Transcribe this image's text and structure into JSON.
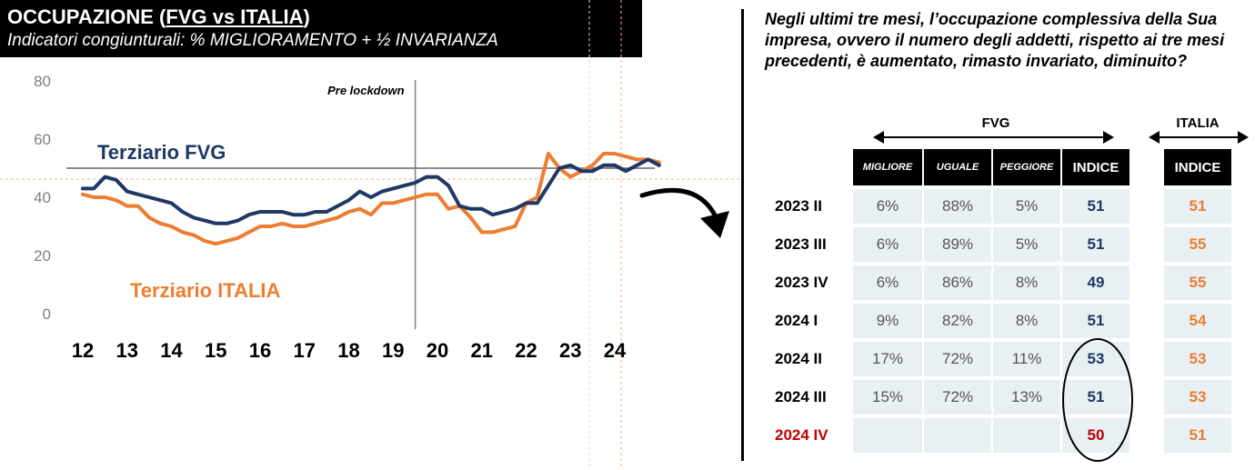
{
  "header": {
    "title_part1": "OCCUPAZIONE (",
    "title_part2": "FVG vs ITALIA",
    "title_part3": ")",
    "subtitle": "Indicatori congiunturali: % MIGLIORAMENTO + ½ INVARIANZA"
  },
  "chart_data": {
    "type": "line",
    "ylim": [
      0,
      80
    ],
    "yticks": [
      0,
      20,
      40,
      60,
      80
    ],
    "x_tick_labels": [
      "12",
      "13",
      "14",
      "15",
      "16",
      "17",
      "18",
      "19",
      "20",
      "21",
      "22",
      "23",
      "24"
    ],
    "x_start": 2012,
    "reference_line_y": 50,
    "annotation": "Pre lockdown",
    "annotation_x": 2019.5,
    "series": [
      {
        "name": "Terziario FVG",
        "color": "#1f3864",
        "points": [
          [
            2012,
            43
          ],
          [
            2012.25,
            43
          ],
          [
            2012.5,
            47
          ],
          [
            2012.75,
            46
          ],
          [
            2013,
            42
          ],
          [
            2013.25,
            41
          ],
          [
            2013.5,
            40
          ],
          [
            2013.75,
            39
          ],
          [
            2014,
            38
          ],
          [
            2014.25,
            35
          ],
          [
            2014.5,
            33
          ],
          [
            2014.75,
            32
          ],
          [
            2015,
            31
          ],
          [
            2015.25,
            31
          ],
          [
            2015.5,
            32
          ],
          [
            2015.75,
            34
          ],
          [
            2016,
            35
          ],
          [
            2016.25,
            35
          ],
          [
            2016.5,
            35
          ],
          [
            2016.75,
            34
          ],
          [
            2017,
            34
          ],
          [
            2017.25,
            35
          ],
          [
            2017.5,
            35
          ],
          [
            2017.75,
            37
          ],
          [
            2018,
            39
          ],
          [
            2018.25,
            42
          ],
          [
            2018.5,
            40
          ],
          [
            2018.75,
            42
          ],
          [
            2019,
            43
          ],
          [
            2019.25,
            44
          ],
          [
            2019.5,
            45
          ],
          [
            2019.75,
            47
          ],
          [
            2020,
            47
          ],
          [
            2020.25,
            44
          ],
          [
            2020.5,
            37
          ],
          [
            2020.75,
            36
          ],
          [
            2021,
            36
          ],
          [
            2021.25,
            34
          ],
          [
            2021.5,
            35
          ],
          [
            2021.75,
            36
          ],
          [
            2022,
            38
          ],
          [
            2022.25,
            38
          ],
          [
            2022.5,
            44
          ],
          [
            2022.75,
            50
          ],
          [
            2023,
            51
          ],
          [
            2023.25,
            49
          ],
          [
            2023.5,
            49
          ],
          [
            2023.75,
            51
          ],
          [
            2024,
            51
          ],
          [
            2024.25,
            49
          ],
          [
            2024.5,
            51
          ],
          [
            2024.75,
            53
          ],
          [
            2025,
            51
          ]
        ]
      },
      {
        "name": "Terziario ITALIA",
        "color": "#ed7d31",
        "points": [
          [
            2012,
            41
          ],
          [
            2012.25,
            40
          ],
          [
            2012.5,
            40
          ],
          [
            2012.75,
            39
          ],
          [
            2013,
            37
          ],
          [
            2013.25,
            37
          ],
          [
            2013.5,
            33
          ],
          [
            2013.75,
            31
          ],
          [
            2014,
            30
          ],
          [
            2014.25,
            28
          ],
          [
            2014.5,
            27
          ],
          [
            2014.75,
            25
          ],
          [
            2015,
            24
          ],
          [
            2015.25,
            25
          ],
          [
            2015.5,
            26
          ],
          [
            2015.75,
            28
          ],
          [
            2016,
            30
          ],
          [
            2016.25,
            30
          ],
          [
            2016.5,
            31
          ],
          [
            2016.75,
            30
          ],
          [
            2017,
            30
          ],
          [
            2017.25,
            31
          ],
          [
            2017.5,
            32
          ],
          [
            2017.75,
            33
          ],
          [
            2018,
            35
          ],
          [
            2018.25,
            36
          ],
          [
            2018.5,
            34
          ],
          [
            2018.75,
            38
          ],
          [
            2019,
            38
          ],
          [
            2019.25,
            39
          ],
          [
            2019.5,
            40
          ],
          [
            2019.75,
            41
          ],
          [
            2020,
            41
          ],
          [
            2020.25,
            36
          ],
          [
            2020.5,
            37
          ],
          [
            2020.75,
            33
          ],
          [
            2021,
            28
          ],
          [
            2021.25,
            28
          ],
          [
            2021.5,
            29
          ],
          [
            2021.75,
            30
          ],
          [
            2022,
            38
          ],
          [
            2022.25,
            40
          ],
          [
            2022.5,
            55
          ],
          [
            2022.75,
            50
          ],
          [
            2023,
            47
          ],
          [
            2023.25,
            49
          ],
          [
            2023.5,
            51
          ],
          [
            2023.75,
            55
          ],
          [
            2024,
            55
          ],
          [
            2024.25,
            54
          ],
          [
            2024.5,
            53
          ],
          [
            2024.75,
            53
          ],
          [
            2025,
            52
          ]
        ]
      }
    ]
  },
  "question": "Negli ultimi tre mesi, l’occupazione complessiva della Sua impresa, ovvero il numero degli addetti, rispetto ai tre mesi precedenti, è aumentato, rimasto invariato, diminuito?",
  "table": {
    "group_fvg": "FVG",
    "group_italia": "ITALIA",
    "headers": [
      "MIGLIORE",
      "UGUALE",
      "PEGGIORE",
      "INDICE"
    ],
    "italia_header": "INDICE",
    "rows": [
      {
        "period": "2023 II",
        "migliore": "6%",
        "uguale": "88%",
        "peggiore": "5%",
        "indice": "51",
        "italia": "51"
      },
      {
        "period": "2023 III",
        "migliore": "6%",
        "uguale": "89%",
        "peggiore": "5%",
        "indice": "51",
        "italia": "55"
      },
      {
        "period": "2023 IV",
        "migliore": "6%",
        "uguale": "86%",
        "peggiore": "8%",
        "indice": "49",
        "italia": "55"
      },
      {
        "period": "2024 I",
        "migliore": "9%",
        "uguale": "82%",
        "peggiore": "8%",
        "indice": "51",
        "italia": "54"
      },
      {
        "period": "2024 II",
        "migliore": "17%",
        "uguale": "72%",
        "peggiore": "11%",
        "indice": "53",
        "italia": "53"
      },
      {
        "period": "2024 III",
        "migliore": "15%",
        "uguale": "72%",
        "peggiore": "13%",
        "indice": "51",
        "italia": "53"
      },
      {
        "period": "2024 IV",
        "migliore": "",
        "uguale": "",
        "peggiore": "",
        "indice": "50",
        "italia": "51"
      }
    ],
    "highlight_color": "#c00000"
  }
}
